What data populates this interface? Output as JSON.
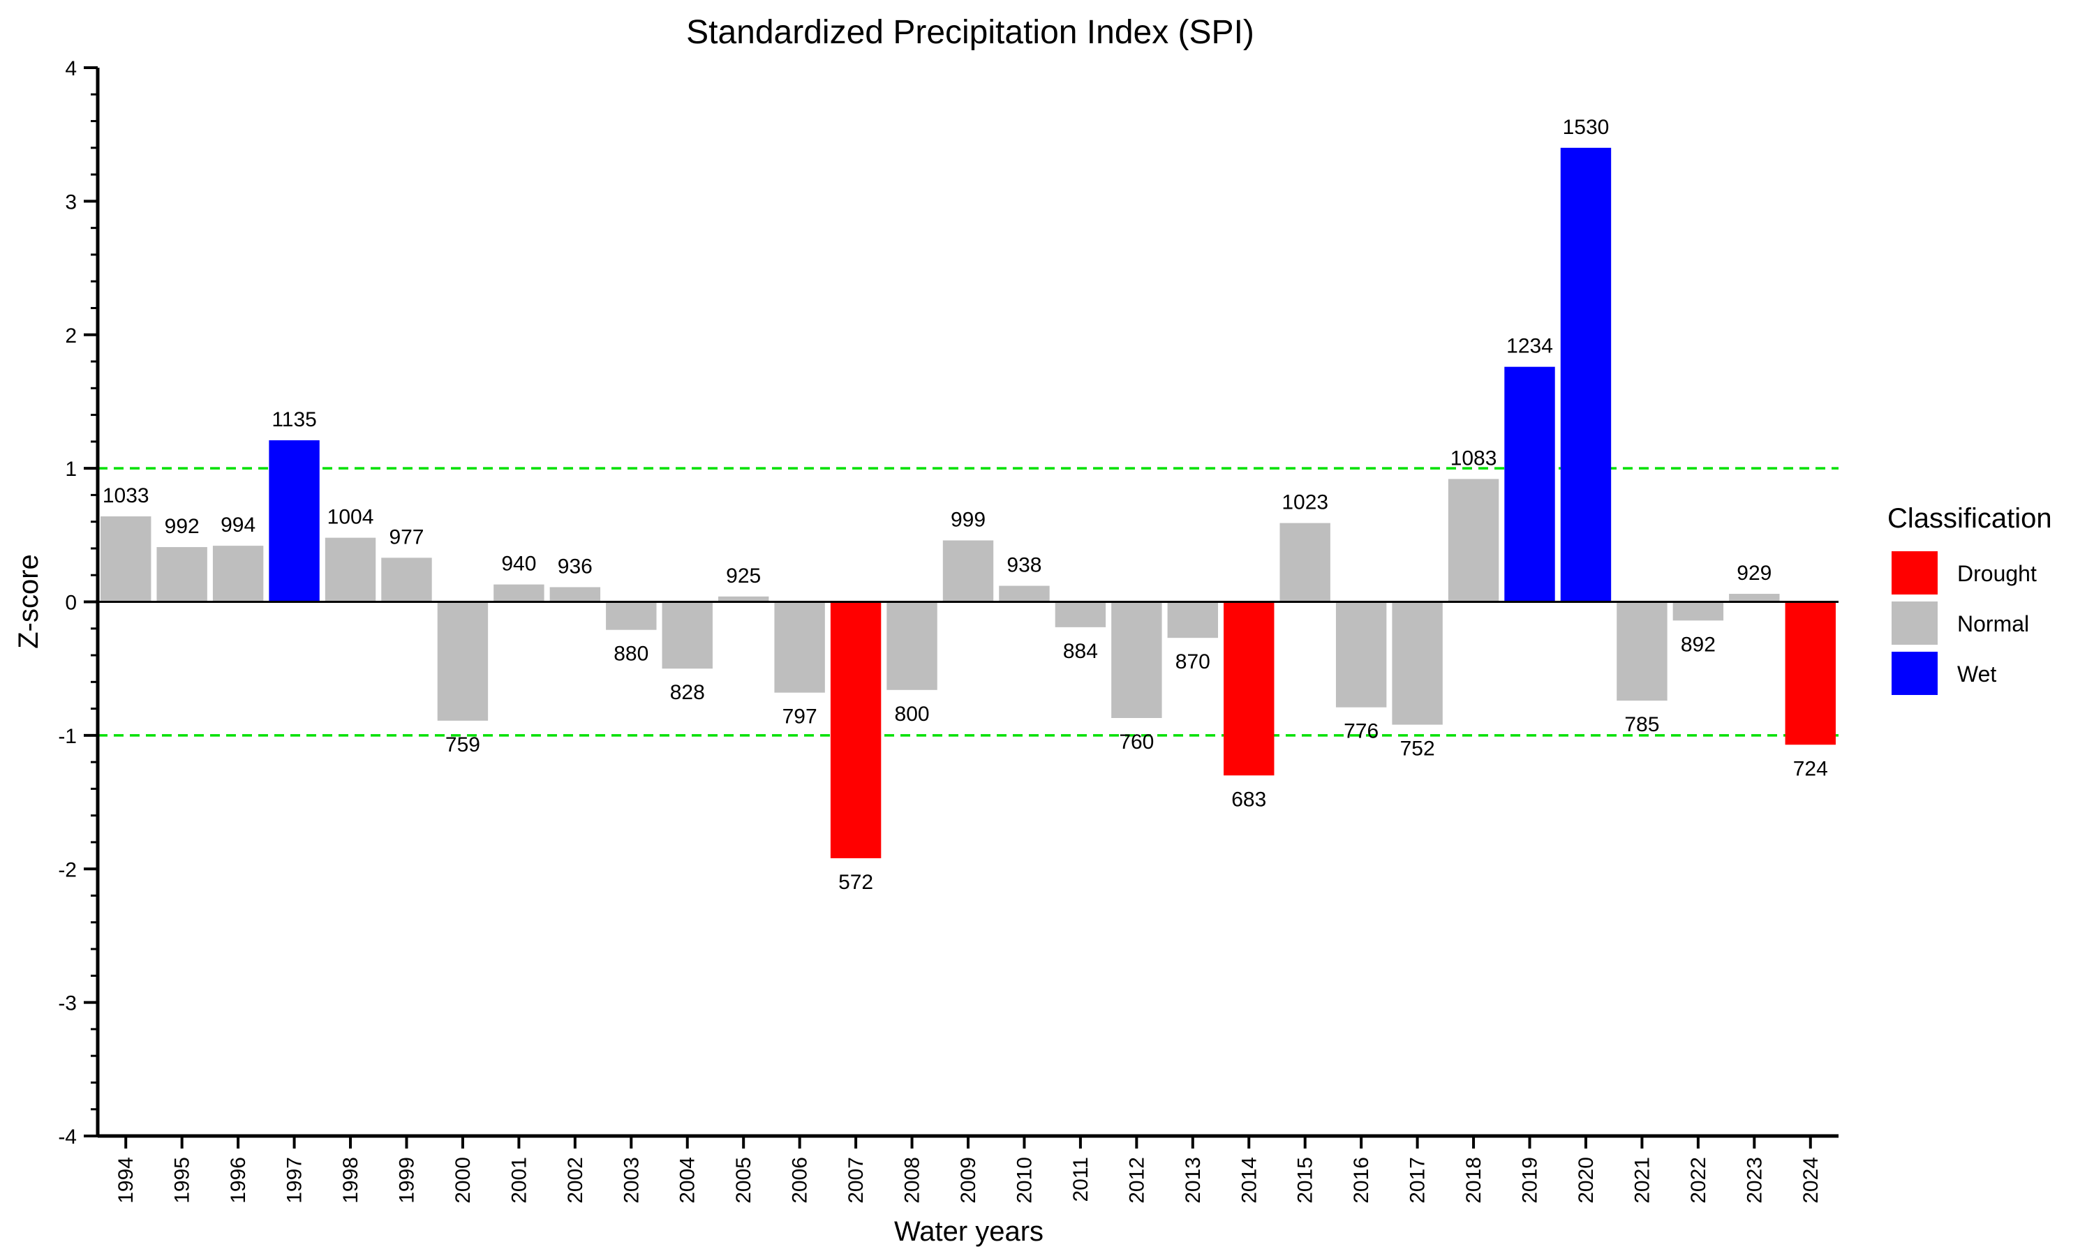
{
  "chart_data": {
    "type": "bar",
    "title": "Standardized Precipitation Index (SPI)",
    "xlabel": "Water years",
    "ylabel": "Z-score",
    "ylim": [
      -4,
      4
    ],
    "yticks": [
      "4",
      "3",
      "2",
      "1",
      "0",
      "-1",
      "-2",
      "-3",
      "-4"
    ],
    "thresholds": [
      1,
      -1
    ],
    "legend": {
      "title": "Classification",
      "position": "right",
      "items": [
        {
          "label": "Drought",
          "color": "#ff0000"
        },
        {
          "label": "Normal",
          "color": "#bebebe"
        },
        {
          "label": "Wet",
          "color": "#0000ff"
        }
      ]
    },
    "colors": {
      "Drought": "#ff0000",
      "Normal": "#bebebe",
      "Wet": "#0000ff",
      "threshold": "#00e000"
    },
    "categories": [
      "1994",
      "1995",
      "1996",
      "1997",
      "1998",
      "1999",
      "2000",
      "2001",
      "2002",
      "2003",
      "2004",
      "2005",
      "2006",
      "2007",
      "2008",
      "2009",
      "2010",
      "2011",
      "2012",
      "2013",
      "2014",
      "2015",
      "2016",
      "2017",
      "2018",
      "2019",
      "2020",
      "2021",
      "2022",
      "2023",
      "2024"
    ],
    "values": [
      0.64,
      0.41,
      0.42,
      1.21,
      0.48,
      0.33,
      -0.89,
      0.13,
      0.11,
      -0.21,
      -0.5,
      0.04,
      -0.68,
      -1.92,
      -0.66,
      0.46,
      0.12,
      -0.19,
      -0.87,
      -0.27,
      -1.3,
      0.59,
      -0.79,
      -0.92,
      0.92,
      1.76,
      3.4,
      -0.74,
      -0.14,
      0.06,
      -1.07
    ],
    "precipitation": [
      "1033",
      "992",
      "994",
      "1135",
      "1004",
      "977",
      "759",
      "940",
      "936",
      "880",
      "828",
      "925",
      "797",
      "572",
      "800",
      "999",
      "938",
      "884",
      "760",
      "870",
      "683",
      "1023",
      "776",
      "752",
      "1083",
      "1234",
      "1530",
      "785",
      "892",
      "929",
      "724"
    ],
    "classification": [
      "Normal",
      "Normal",
      "Normal",
      "Wet",
      "Normal",
      "Normal",
      "Normal",
      "Normal",
      "Normal",
      "Normal",
      "Normal",
      "Normal",
      "Normal",
      "Drought",
      "Normal",
      "Normal",
      "Normal",
      "Normal",
      "Normal",
      "Normal",
      "Drought",
      "Normal",
      "Normal",
      "Normal",
      "Normal",
      "Wet",
      "Wet",
      "Normal",
      "Normal",
      "Normal",
      "Drought"
    ]
  }
}
